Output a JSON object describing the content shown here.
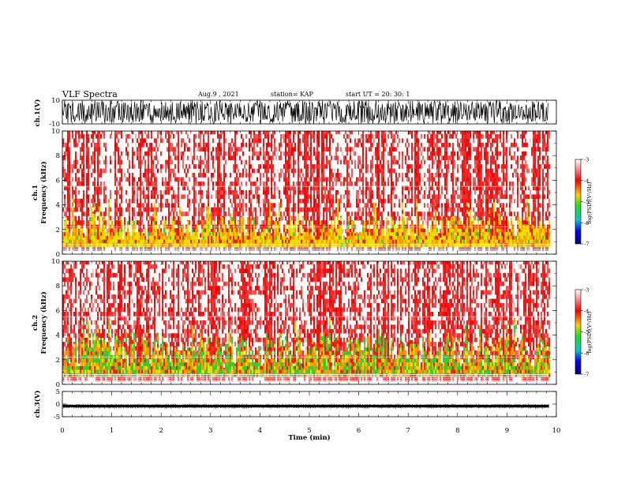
{
  "header": {
    "title": "VLF Spectra",
    "date": "Aug.9 , 2021",
    "station": "station= KAP",
    "start": "start UT = 20: 30: 1"
  },
  "chart_data": [
    {
      "type": "line",
      "panel": "waveform-ch1",
      "ylabel": "ch.1(V)",
      "ylim": [
        -10,
        10
      ],
      "yticks": [
        "10",
        "-10"
      ],
      "xlim": [
        0,
        10
      ],
      "signal_min": -10,
      "signal_max": 10
    },
    {
      "type": "heatmap",
      "panel": "spectrogram-ch1",
      "ylabel": "ch.1\nFrequency (kHz)",
      "ylabel_line1": "ch.1",
      "ylabel_line2": "Frequency (kHz)",
      "ylim": [
        0,
        10
      ],
      "yticks": [
        "0",
        "2",
        "4",
        "6",
        "8",
        "10"
      ],
      "xlim": [
        0,
        10
      ],
      "data_end_min": 9.85,
      "colorbar": {
        "label": "log(PSD)(V²/Hz)",
        "range": [
          -7,
          -3
        ],
        "ticks": [
          "-3",
          "-4",
          "-5",
          "-6",
          "-7"
        ]
      }
    },
    {
      "type": "heatmap",
      "panel": "spectrogram-ch2",
      "ylabel": "ch.2\nFrequency (kHz)",
      "ylabel_line1": "ch.2",
      "ylabel_line2": "Frequency (kHz)",
      "ylim": [
        0,
        10
      ],
      "yticks": [
        "0",
        "2",
        "4",
        "6",
        "8",
        "10"
      ],
      "xlim": [
        0,
        10
      ],
      "data_end_min": 9.85,
      "colorbar": {
        "label": "log(PSD)(V²/Hz)",
        "range": [
          -7,
          -3
        ],
        "ticks": [
          "-3",
          "-4",
          "-5",
          "-6",
          "-7"
        ]
      }
    },
    {
      "type": "line",
      "panel": "waveform-ch3",
      "ylabel": "ch.3(V)",
      "ylim": [
        -5,
        5
      ],
      "yticks": [
        "5",
        "0",
        "-5"
      ],
      "xlim": [
        0,
        10
      ],
      "xlabel": "Time (min)",
      "xticks": [
        "0",
        "1",
        "2",
        "3",
        "4",
        "5",
        "6",
        "7",
        "8",
        "9",
        "10"
      ],
      "signal_center": -0.8,
      "signal_halfwidth": 0.5
    }
  ],
  "colors": {
    "background": "#ffffff",
    "ink": "#000000",
    "spectrogram_high": "#e00000",
    "spectrogram_mid": "#ffa500",
    "spectrogram_low": "#22cc22"
  }
}
